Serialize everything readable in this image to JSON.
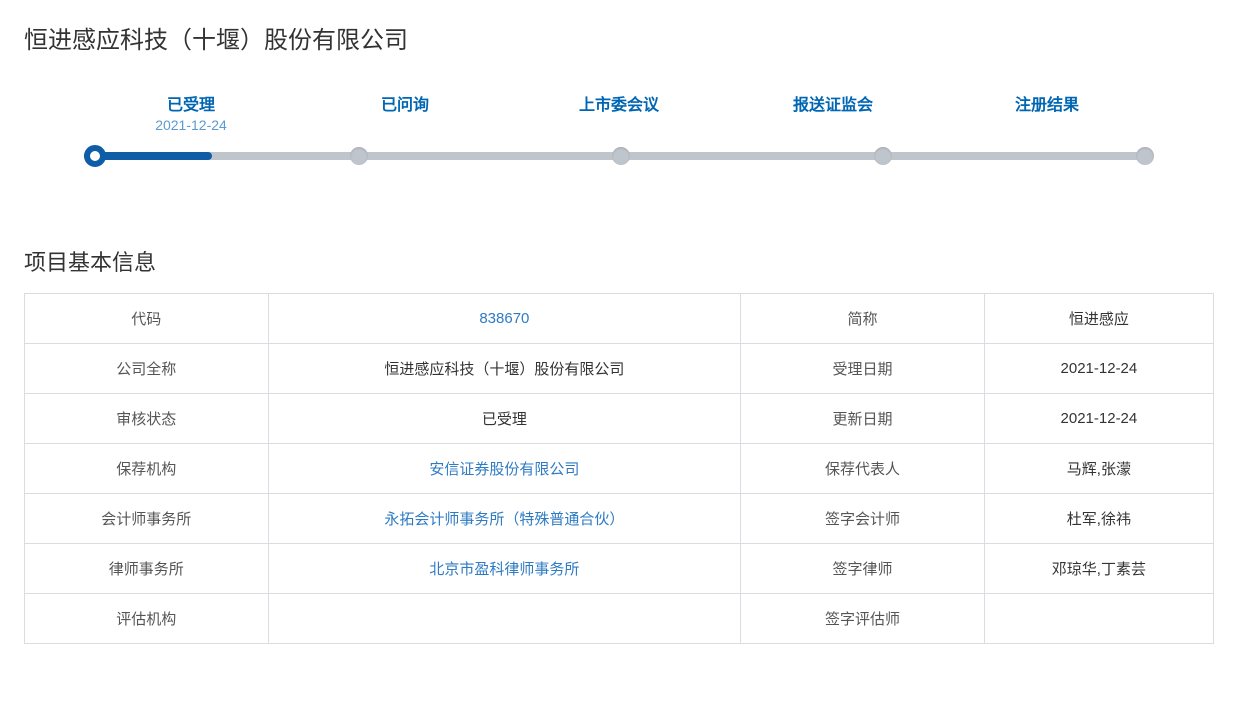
{
  "company_title": "恒进感应科技（十堰）股份有限公司",
  "progress": {
    "active_index": 0,
    "filled_percent": 12,
    "steps": [
      {
        "name": "已受理",
        "date": "2021-12-24"
      },
      {
        "name": "已问询",
        "date": ""
      },
      {
        "name": "上市委会议",
        "date": ""
      },
      {
        "name": "报送证监会",
        "date": ""
      },
      {
        "name": "注册结果",
        "date": ""
      }
    ]
  },
  "section_title": "项目基本信息",
  "colors": {
    "link": "#2e7bc4",
    "brand": "#0e5da6",
    "track": "#bfc5cc",
    "border": "#d9dde1"
  },
  "table_rows": [
    {
      "label1": "代码",
      "value1": "838670",
      "value1_link": true,
      "label2": "简称",
      "value2": "恒进感应"
    },
    {
      "label1": "公司全称",
      "value1": "恒进感应科技（十堰）股份有限公司",
      "value1_link": false,
      "label2": "受理日期",
      "value2": "2021-12-24"
    },
    {
      "label1": "审核状态",
      "value1": "已受理",
      "value1_link": false,
      "label2": "更新日期",
      "value2": "2021-12-24"
    },
    {
      "label1": "保荐机构",
      "value1": "安信证券股份有限公司",
      "value1_link": true,
      "label2": "保荐代表人",
      "value2": "马辉,张濛"
    },
    {
      "label1": "会计师事务所",
      "value1": "永拓会计师事务所（特殊普通合伙）",
      "value1_link": true,
      "label2": "签字会计师",
      "value2": "杜军,徐祎"
    },
    {
      "label1": "律师事务所",
      "value1": "北京市盈科律师事务所",
      "value1_link": true,
      "label2": "签字律师",
      "value2": "邓琼华,丁素芸"
    },
    {
      "label1": "评估机构",
      "value1": "",
      "value1_link": false,
      "label2": "签字评估师",
      "value2": ""
    }
  ]
}
